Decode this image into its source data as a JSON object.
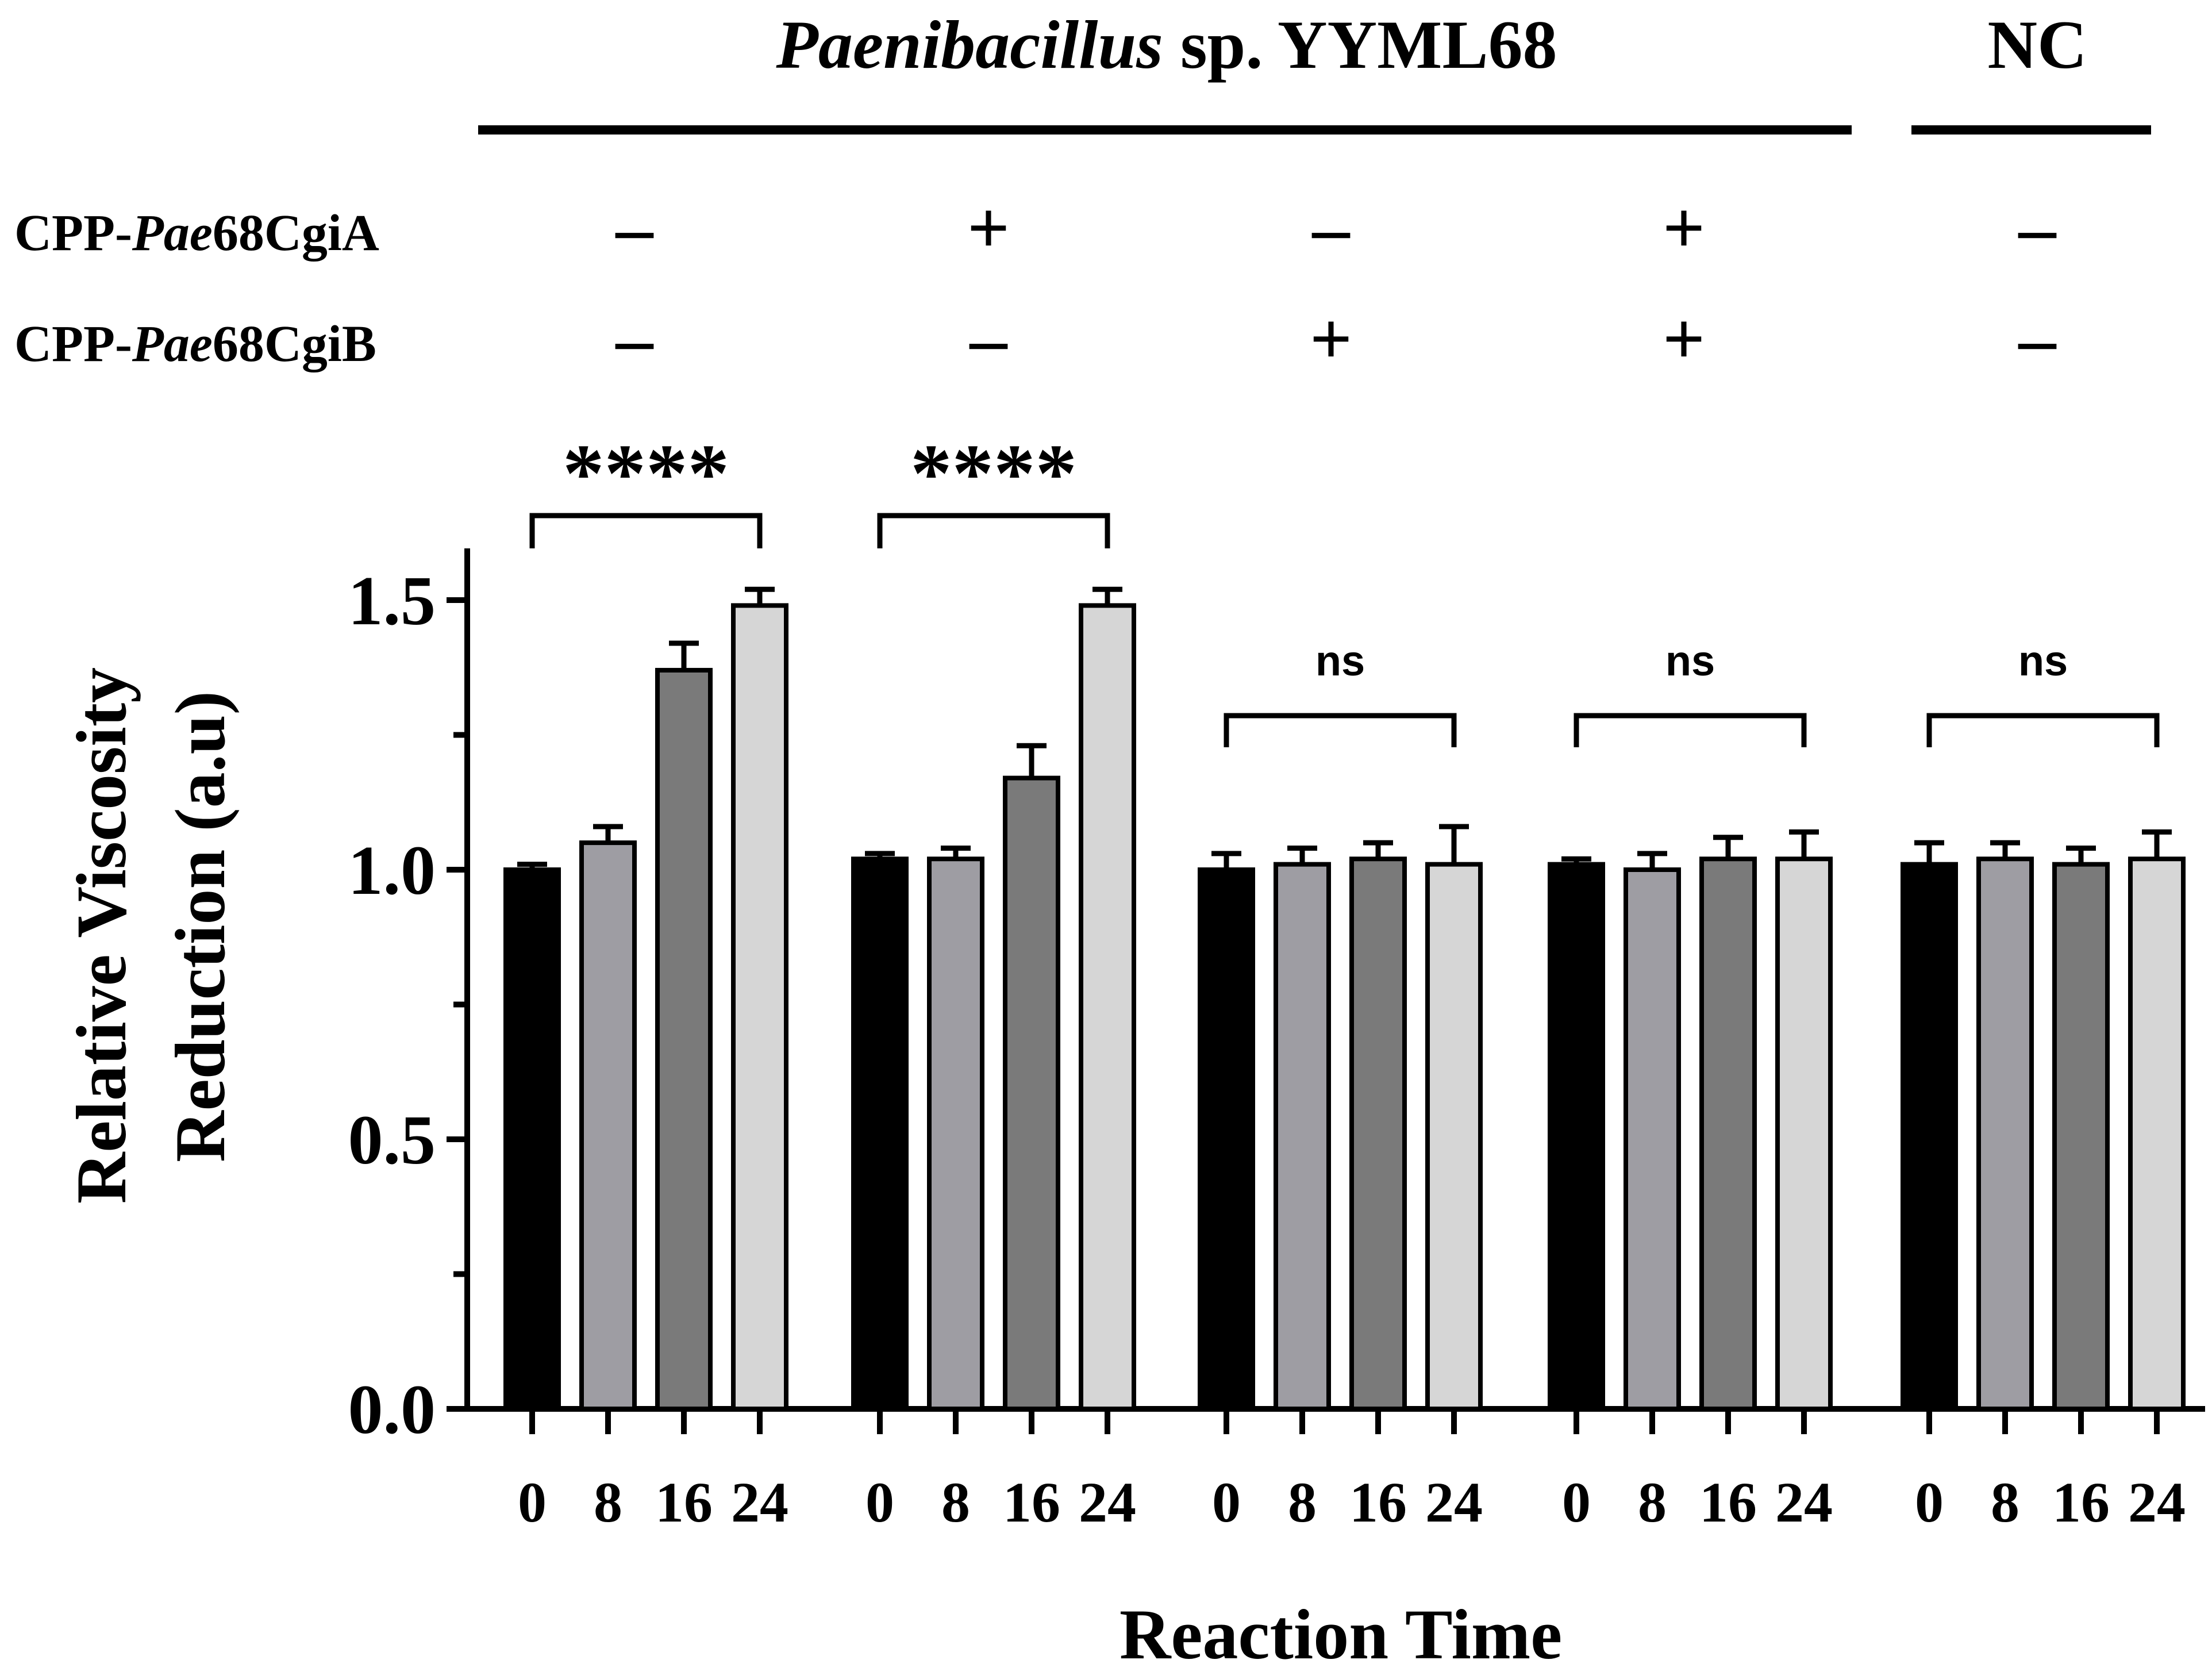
{
  "header": {
    "organism_italic": "Paenibacillus",
    "organism_rest": " sp. YYML68",
    "nc_label": "NC",
    "rows": [
      {
        "prefix": "CPP-",
        "italic": "Pae",
        "suffix": "68CgiA",
        "signs": [
          "–",
          "+",
          "–",
          "+",
          "–"
        ]
      },
      {
        "prefix": "CPP-",
        "italic": "Pae",
        "suffix": "68CgiB",
        "signs": [
          "–",
          "–",
          "+",
          "+",
          "–"
        ]
      }
    ]
  },
  "chart_data": {
    "type": "bar",
    "ylabel_line1": "Relative Viscosity",
    "ylabel_line2": "Reduction (a.u)",
    "xlabel": "Reaction Time",
    "ylim": [
      0,
      1.6
    ],
    "yticks": [
      {
        "value": 0.0,
        "label": "0.0"
      },
      {
        "value": 0.5,
        "label": "0.5"
      },
      {
        "value": 1.0,
        "label": "1.0"
      },
      {
        "value": 1.5,
        "label": "1.5"
      }
    ],
    "minor_yticks": [
      0.25,
      0.75,
      1.25
    ],
    "categories": [
      "0",
      "8",
      "16",
      "24"
    ],
    "bar_colors": [
      "#000000",
      "#9e9da3",
      "#7a7a7a",
      "#d6d6d6"
    ],
    "groups": [
      {
        "values": [
          1.0,
          1.05,
          1.37,
          1.49
        ],
        "errors": [
          0.01,
          0.03,
          0.05,
          0.03
        ],
        "significance": "****"
      },
      {
        "values": [
          1.02,
          1.02,
          1.17,
          1.49
        ],
        "errors": [
          0.01,
          0.02,
          0.06,
          0.03
        ],
        "significance": "****"
      },
      {
        "values": [
          1.0,
          1.01,
          1.02,
          1.01
        ],
        "errors": [
          0.03,
          0.03,
          0.03,
          0.07
        ],
        "significance": "ns"
      },
      {
        "values": [
          1.01,
          1.0,
          1.02,
          1.02
        ],
        "errors": [
          0.01,
          0.03,
          0.04,
          0.05
        ],
        "significance": "ns"
      },
      {
        "values": [
          1.01,
          1.02,
          1.01,
          1.02
        ],
        "errors": [
          0.04,
          0.03,
          0.03,
          0.05
        ],
        "significance": "ns"
      }
    ]
  }
}
